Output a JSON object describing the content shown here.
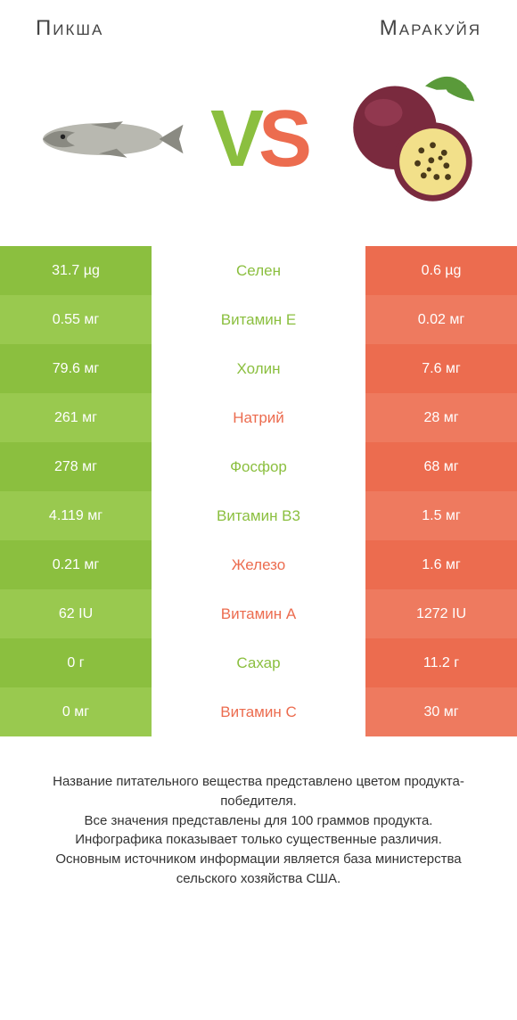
{
  "titles": {
    "left": "Пикша",
    "right": "Mаракуйя"
  },
  "vs": {
    "v": "V",
    "s": "S"
  },
  "colors": {
    "left_bg": "#8bbf3f",
    "left_bg_alt": "#99c94f",
    "right_bg": "#ec6c4f",
    "right_bg_alt": "#ee7a5f",
    "mid_green": "#8bbf3f",
    "mid_orange": "#ec6c4f",
    "cell_text": "#ffffff"
  },
  "rows": [
    {
      "label": "Селен",
      "left": "31.7 µg",
      "right": "0.6 µg",
      "winner": "left"
    },
    {
      "label": "Витамин E",
      "left": "0.55 мг",
      "right": "0.02 мг",
      "winner": "left"
    },
    {
      "label": "Холин",
      "left": "79.6 мг",
      "right": "7.6 мг",
      "winner": "left"
    },
    {
      "label": "Натрий",
      "left": "261 мг",
      "right": "28 мг",
      "winner": "right"
    },
    {
      "label": "Фосфор",
      "left": "278 мг",
      "right": "68 мг",
      "winner": "left"
    },
    {
      "label": "Витамин B3",
      "left": "4.119 мг",
      "right": "1.5 мг",
      "winner": "left"
    },
    {
      "label": "Железо",
      "left": "0.21 мг",
      "right": "1.6 мг",
      "winner": "right"
    },
    {
      "label": "Витамин A",
      "left": "62 IU",
      "right": "1272 IU",
      "winner": "right"
    },
    {
      "label": "Сахар",
      "left": "0 г",
      "right": "11.2 г",
      "winner": "left"
    },
    {
      "label": "Витамин C",
      "left": "0 мг",
      "right": "30 мг",
      "winner": "right"
    }
  ],
  "footer": "Название питательного вещества представлено цветом продукта-победителя.\nВсе значения представлены для 100 граммов продукта.\nИнфографика показывает только существенные различия.\nОсновным источником информации является база министерства сельского хозяйства США."
}
